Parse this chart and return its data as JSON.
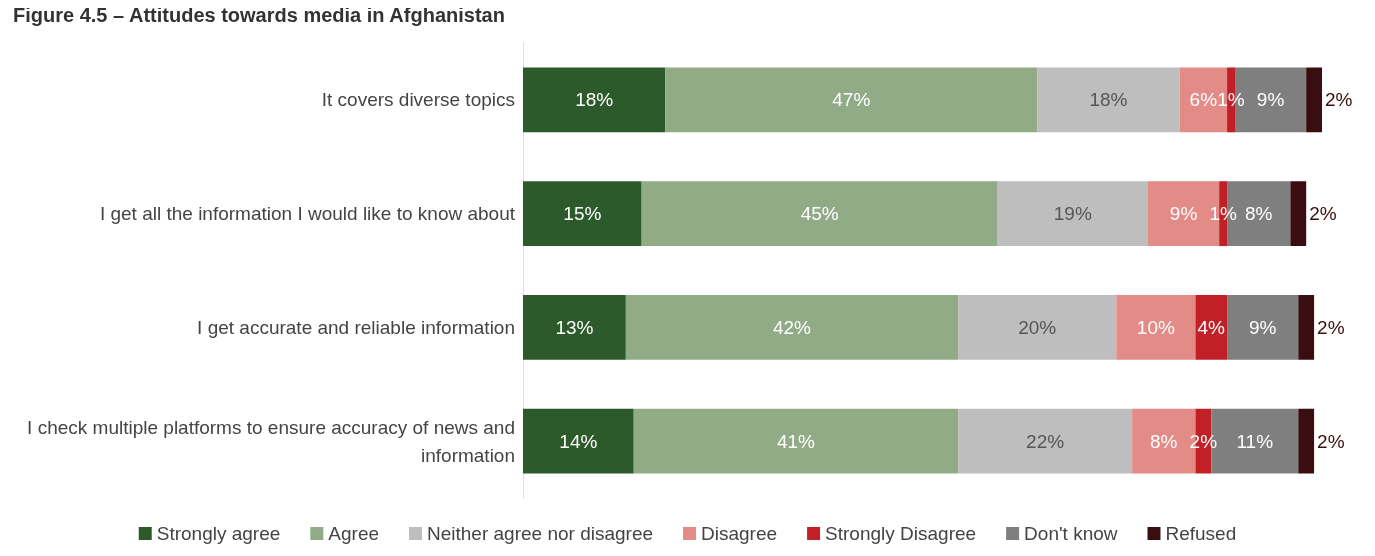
{
  "chart_data": {
    "type": "bar",
    "orientation": "horizontal",
    "stacked": true,
    "title": "Figure 4.5 – Attitudes towards media in Afghanistan",
    "categories": [
      "It covers diverse topics",
      "I get all the information I would like to know about",
      "I get accurate and reliable information",
      "I check multiple platforms to ensure accuracy of news and information"
    ],
    "series": [
      {
        "name": "Strongly agree",
        "color": "#2d5a2b",
        "values": [
          18,
          15,
          13,
          14
        ],
        "value_labels": [
          "18%",
          "15%",
          "13%",
          "14%"
        ]
      },
      {
        "name": "Agree",
        "color": "#91ab87",
        "values": [
          47,
          45,
          42,
          41
        ],
        "value_labels": [
          "47%",
          "45%",
          "42%",
          "41%"
        ]
      },
      {
        "name": "Neither agree nor disagree",
        "color": "#bfbebe",
        "values": [
          18,
          19,
          20,
          22
        ],
        "value_labels": [
          "18%",
          "19%",
          "20%",
          "22%"
        ]
      },
      {
        "name": "Disagree",
        "color": "#e38b87",
        "values": [
          6,
          9,
          10,
          8
        ],
        "value_labels": [
          "6%",
          "9%",
          "10%",
          "8%"
        ]
      },
      {
        "name": "Strongly Disagree",
        "color": "#c02026",
        "values": [
          1,
          1,
          4,
          2
        ],
        "value_labels": [
          "1%",
          "1%",
          "4%",
          "2%"
        ]
      },
      {
        "name": "Don't know",
        "color": "#7f7f7f",
        "values": [
          9,
          8,
          9,
          11
        ],
        "value_labels": [
          "9%",
          "8%",
          "9%",
          "11%"
        ]
      },
      {
        "name": "Refused",
        "color": "#3a0e10",
        "values": [
          2,
          2,
          2,
          2
        ],
        "value_labels": [
          "2%",
          "2%",
          "2%",
          "2%"
        ]
      }
    ],
    "xlim": [
      0,
      101
    ],
    "legend": "bottom"
  }
}
